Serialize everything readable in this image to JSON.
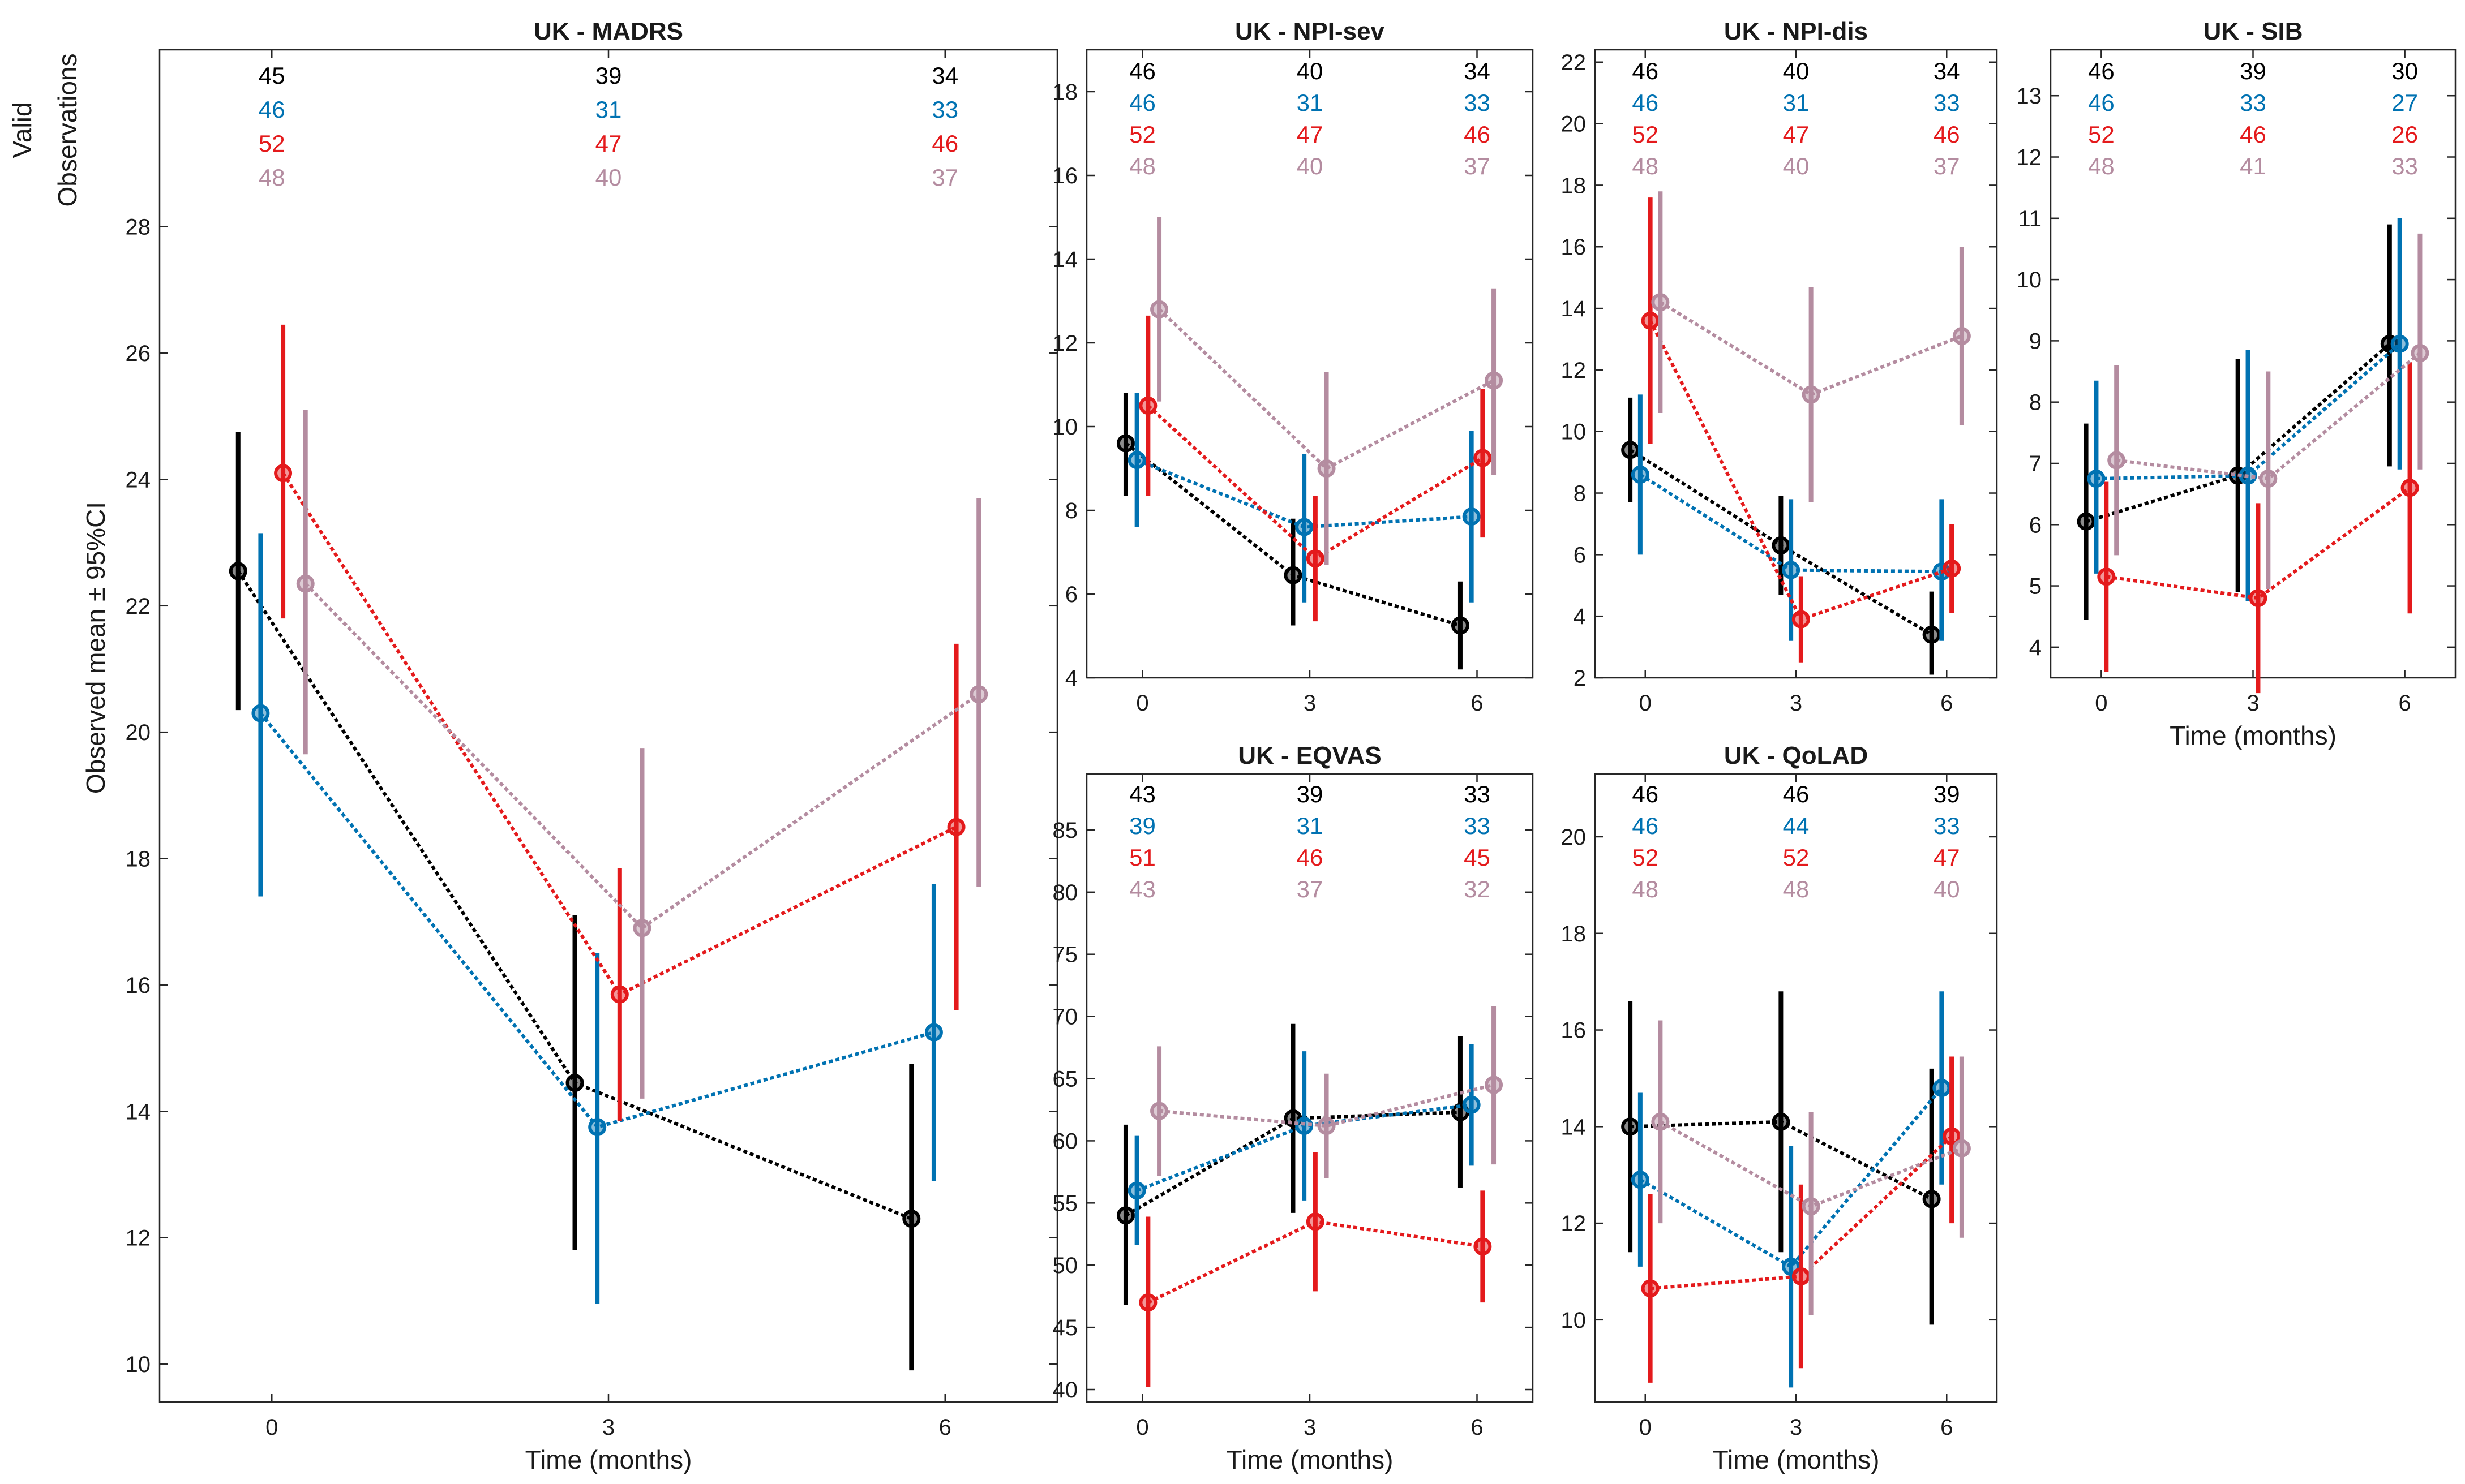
{
  "colors": [
    "#000000",
    "#0072B2",
    "#E41A1C",
    "#B48CA0"
  ],
  "shared": {
    "xlabel": "Time (months)",
    "ylabel": "Observed mean ± 95%CI",
    "obs_label_line1": "Valid",
    "obs_label_line2": "Observations",
    "x_ticks": [
      "0",
      "3",
      "6"
    ]
  },
  "chart_data": [
    {
      "type": "line",
      "title": "UK - MADRS",
      "x": [
        0,
        3,
        6
      ],
      "xlim": [
        -1,
        7
      ],
      "ylim": [
        9.4,
        30.8
      ],
      "yticks": [
        10,
        12,
        14,
        16,
        18,
        20,
        22,
        24,
        26,
        28
      ],
      "valid_observations": [
        [
          "45",
          "39",
          "34"
        ],
        [
          "46",
          "31",
          "33"
        ],
        [
          "52",
          "47",
          "46"
        ],
        [
          "48",
          "40",
          "37"
        ]
      ],
      "series": [
        {
          "values": [
            22.55,
            14.45,
            12.3
          ],
          "ci": [
            [
              20.35,
              24.75
            ],
            [
              11.8,
              17.1
            ],
            [
              9.9,
              14.75
            ]
          ]
        },
        {
          "values": [
            20.3,
            13.75,
            15.25
          ],
          "ci": [
            [
              17.4,
              23.15
            ],
            [
              10.95,
              16.5
            ],
            [
              12.9,
              17.6
            ]
          ]
        },
        {
          "values": [
            24.1,
            15.85,
            18.5
          ],
          "ci": [
            [
              21.8,
              26.45
            ],
            [
              13.85,
              17.85
            ],
            [
              15.6,
              21.4
            ]
          ]
        },
        {
          "values": [
            22.35,
            16.9,
            20.6
          ],
          "ci": [
            [
              19.65,
              25.1
            ],
            [
              14.2,
              19.75
            ],
            [
              17.55,
              23.7
            ]
          ]
        }
      ]
    },
    {
      "type": "line",
      "title": "UK - NPI-sev",
      "x": [
        0,
        3,
        6
      ],
      "xlim": [
        -1,
        7
      ],
      "ylim": [
        4,
        19
      ],
      "yticks": [
        4,
        6,
        8,
        10,
        12,
        14,
        16,
        18
      ],
      "valid_observations": [
        [
          "46",
          "40",
          "34"
        ],
        [
          "46",
          "31",
          "33"
        ],
        [
          "52",
          "47",
          "46"
        ],
        [
          "48",
          "40",
          "37"
        ]
      ],
      "series": [
        {
          "values": [
            9.6,
            6.45,
            5.25
          ],
          "ci": [
            [
              8.35,
              10.8
            ],
            [
              5.25,
              7.8
            ],
            [
              4.2,
              6.3
            ]
          ]
        },
        {
          "values": [
            9.2,
            7.6,
            7.85
          ],
          "ci": [
            [
              7.6,
              10.8
            ],
            [
              5.8,
              9.35
            ],
            [
              5.8,
              9.9
            ]
          ]
        },
        {
          "values": [
            10.5,
            6.85,
            9.25
          ],
          "ci": [
            [
              8.35,
              12.65
            ],
            [
              5.35,
              8.35
            ],
            [
              7.35,
              10.9
            ]
          ]
        },
        {
          "values": [
            12.8,
            9.0,
            11.1
          ],
          "ci": [
            [
              10.6,
              15.0
            ],
            [
              6.7,
              11.3
            ],
            [
              8.85,
              13.3
            ]
          ]
        }
      ]
    },
    {
      "type": "line",
      "title": "UK - NPI-dis",
      "x": [
        0,
        3,
        6
      ],
      "xlim": [
        -1,
        7
      ],
      "ylim": [
        2,
        22.4
      ],
      "yticks": [
        2,
        4,
        6,
        8,
        10,
        12,
        14,
        16,
        18,
        20,
        22
      ],
      "valid_observations": [
        [
          "46",
          "40",
          "34"
        ],
        [
          "46",
          "31",
          "33"
        ],
        [
          "52",
          "47",
          "46"
        ],
        [
          "48",
          "40",
          "37"
        ]
      ],
      "series": [
        {
          "values": [
            9.4,
            6.3,
            3.4
          ],
          "ci": [
            [
              7.7,
              11.1
            ],
            [
              4.7,
              7.9
            ],
            [
              2.1,
              4.8
            ]
          ]
        },
        {
          "values": [
            8.6,
            5.5,
            5.45
          ],
          "ci": [
            [
              6.0,
              11.2
            ],
            [
              3.2,
              7.8
            ],
            [
              3.2,
              7.8
            ]
          ]
        },
        {
          "values": [
            13.6,
            3.9,
            5.55
          ],
          "ci": [
            [
              9.6,
              17.6
            ],
            [
              2.5,
              5.3
            ],
            [
              4.1,
              7.0
            ]
          ]
        },
        {
          "values": [
            14.2,
            11.2,
            13.1
          ],
          "ci": [
            [
              10.6,
              17.8
            ],
            [
              7.7,
              14.7
            ],
            [
              10.2,
              16.0
            ]
          ]
        }
      ]
    },
    {
      "type": "line",
      "title": "UK - SIB",
      "x": [
        0,
        3,
        6
      ],
      "xlim": [
        -1,
        7
      ],
      "ylim": [
        3.5,
        13.75
      ],
      "yticks": [
        4,
        5,
        6,
        7,
        8,
        9,
        10,
        11,
        12,
        13
      ],
      "valid_observations": [
        [
          "46",
          "39",
          "30"
        ],
        [
          "46",
          "33",
          "27"
        ],
        [
          "52",
          "46",
          "26"
        ],
        [
          "48",
          "41",
          "33"
        ]
      ],
      "series": [
        {
          "values": [
            6.05,
            6.8,
            8.95
          ],
          "ci": [
            [
              4.45,
              7.65
            ],
            [
              4.9,
              8.7
            ],
            [
              6.95,
              10.9
            ]
          ]
        },
        {
          "values": [
            6.75,
            6.8,
            8.95
          ],
          "ci": [
            [
              5.2,
              8.35
            ],
            [
              4.75,
              8.85
            ],
            [
              6.9,
              11.0
            ]
          ]
        },
        {
          "values": [
            5.15,
            4.8,
            6.6
          ],
          "ci": [
            [
              3.6,
              6.7
            ],
            [
              3.25,
              6.35
            ],
            [
              4.55,
              8.65
            ]
          ]
        },
        {
          "values": [
            7.05,
            6.75,
            8.8
          ],
          "ci": [
            [
              5.5,
              8.6
            ],
            [
              4.95,
              8.5
            ],
            [
              6.9,
              10.75
            ]
          ]
        }
      ]
    },
    {
      "type": "line",
      "title": "UK - EQVAS",
      "x": [
        0,
        3,
        6
      ],
      "xlim": [
        -1,
        7
      ],
      "ylim": [
        39,
        89.5
      ],
      "yticks": [
        40,
        45,
        50,
        55,
        60,
        65,
        70,
        75,
        80,
        85
      ],
      "valid_observations": [
        [
          "43",
          "39",
          "33"
        ],
        [
          "39",
          "31",
          "33"
        ],
        [
          "51",
          "46",
          "45"
        ],
        [
          "43",
          "37",
          "32"
        ]
      ],
      "series": [
        {
          "values": [
            54.0,
            61.8,
            62.3
          ],
          "ci": [
            [
              46.8,
              61.3
            ],
            [
              54.2,
              69.4
            ],
            [
              56.2,
              68.4
            ]
          ]
        },
        {
          "values": [
            56.0,
            61.2,
            62.9
          ],
          "ci": [
            [
              51.6,
              60.4
            ],
            [
              55.2,
              67.2
            ],
            [
              58.0,
              67.8
            ]
          ]
        },
        {
          "values": [
            47.0,
            53.5,
            51.5
          ],
          "ci": [
            [
              40.2,
              53.9
            ],
            [
              47.9,
              59.1
            ],
            [
              47.0,
              56.0
            ]
          ]
        },
        {
          "values": [
            62.4,
            61.2,
            64.5
          ],
          "ci": [
            [
              57.2,
              67.6
            ],
            [
              57.0,
              65.4
            ],
            [
              58.1,
              70.8
            ]
          ]
        }
      ]
    },
    {
      "type": "line",
      "title": "UK - QoLAD",
      "x": [
        0,
        3,
        6
      ],
      "xlim": [
        -1,
        7
      ],
      "ylim": [
        8.3,
        21.3
      ],
      "yticks": [
        10,
        12,
        14,
        16,
        18,
        20
      ],
      "valid_observations": [
        [
          "46",
          "46",
          "39"
        ],
        [
          "46",
          "44",
          "33"
        ],
        [
          "52",
          "52",
          "47"
        ],
        [
          "48",
          "48",
          "40"
        ]
      ],
      "series": [
        {
          "values": [
            14.0,
            14.1,
            12.5
          ],
          "ci": [
            [
              11.4,
              16.6
            ],
            [
              11.4,
              16.8
            ],
            [
              9.9,
              15.2
            ]
          ]
        },
        {
          "values": [
            12.9,
            11.1,
            14.8
          ],
          "ci": [
            [
              11.1,
              14.7
            ],
            [
              8.6,
              13.6
            ],
            [
              12.8,
              16.8
            ]
          ]
        },
        {
          "values": [
            10.65,
            10.9,
            13.8
          ],
          "ci": [
            [
              8.7,
              12.6
            ],
            [
              9.0,
              12.8
            ],
            [
              12.0,
              15.45
            ]
          ]
        },
        {
          "values": [
            14.1,
            12.35,
            13.55
          ],
          "ci": [
            [
              12.0,
              16.2
            ],
            [
              10.1,
              14.3
            ],
            [
              11.7,
              15.45
            ]
          ]
        }
      ]
    }
  ]
}
